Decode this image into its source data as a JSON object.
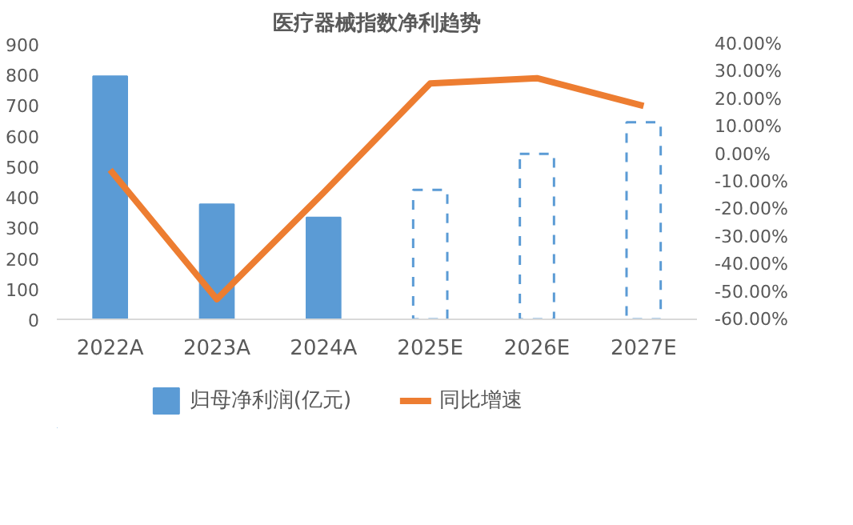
{
  "chart_data": {
    "type": "bar",
    "title": "医疗器械指数净利趋势",
    "categories": [
      "2022A",
      "2023A",
      "2024A",
      "2025E",
      "2026E",
      "2027E"
    ],
    "series": [
      {
        "name": "归母净利润(亿元)",
        "color": "#5b9bd5",
        "values": [
          795,
          376,
          333,
          null,
          null,
          null
        ]
      },
      {
        "color": "#5b9bd5",
        "line_style": "dashed",
        "values": [
          null,
          null,
          null,
          423,
          541,
          644
        ]
      },
      {
        "name": "同比增速",
        "type": "line",
        "axis": "y2",
        "color": "#ed7d31",
        "values": [
          -5.7,
          -52.7,
          -14,
          25.7,
          27.6,
          17.5
        ]
      }
    ],
    "ylim": [
      0,
      900
    ],
    "yticks": [
      0,
      100,
      200,
      300,
      400,
      500,
      600,
      700,
      800,
      900
    ],
    "y2lim": [
      -60,
      40
    ],
    "y2ticks": [
      {
        "value": -60,
        "label": "-60.00%"
      },
      {
        "value": -50,
        "label": "-50.00%"
      },
      {
        "value": -40,
        "label": "-40.00%"
      },
      {
        "value": -30,
        "label": "-30.00%"
      },
      {
        "value": -20,
        "label": "-20.00%"
      },
      {
        "value": -10,
        "label": "-10.00%"
      },
      {
        "value": 0,
        "label": "0.00%"
      },
      {
        "value": 10,
        "label": "10.00%"
      },
      {
        "value": 20,
        "label": "20.00%"
      },
      {
        "value": 30,
        "label": "30.00%"
      },
      {
        "value": 40,
        "label": "40.00%"
      }
    ],
    "legend": "bottom",
    "marker": "none"
  }
}
